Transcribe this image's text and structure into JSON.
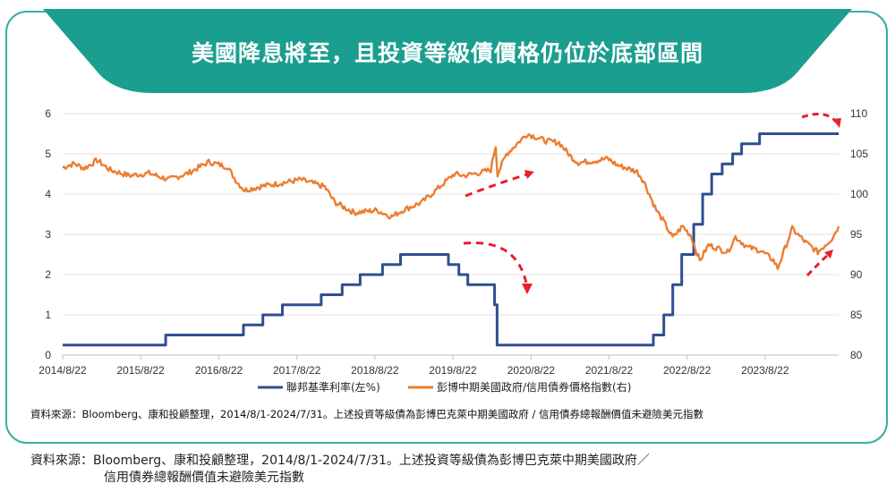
{
  "title": "美國降息將至，且投資等級債價格仍位於底部區間",
  "inner_source": "資料來源：Bloomberg、康和投顧整理，2014/8/1-2024/7/31。上述投資等級債為彭博巴克萊中期美國政府 / 信用債券總報酬價值未避險美元指數",
  "footer": {
    "line1": "資料來源：Bloomberg、康和投顧整理，2014/8/1-2024/7/31。上述投資等級債為彭博巴克萊中期美國政府／",
    "line2": "信用債券總報酬價值未避險美元指數"
  },
  "colors": {
    "accent": "#1a9e8f",
    "rate": "#2f4f8f",
    "index": "#ed7d31",
    "arrow": "#e8202a"
  },
  "chart_data": {
    "type": "line",
    "x_ticks": [
      "2014/8/22",
      "2015/8/22",
      "2016/8/22",
      "2017/8/22",
      "2018/8/22",
      "2019/8/22",
      "2020/8/22",
      "2021/8/22",
      "2022/8/22",
      "2023/8/22"
    ],
    "x_range": [
      "2014/8/22",
      "2024/7/31"
    ],
    "y_left": {
      "ticks": [
        "0",
        "1",
        "2",
        "3",
        "4",
        "5",
        "6"
      ],
      "range": [
        0,
        6
      ]
    },
    "y_right": {
      "ticks": [
        "80",
        "85",
        "90",
        "95",
        "100",
        "105",
        "110"
      ],
      "range": [
        80,
        110
      ]
    },
    "series": [
      {
        "name": "聯邦基準利率(左%)",
        "axis": "left",
        "step": true,
        "points": [
          [
            "2014/8/22",
            0.25
          ],
          [
            "2015/12/17",
            0.5
          ],
          [
            "2016/12/15",
            0.75
          ],
          [
            "2017/3/16",
            1.0
          ],
          [
            "2017/6/15",
            1.25
          ],
          [
            "2017/12/14",
            1.5
          ],
          [
            "2018/3/22",
            1.75
          ],
          [
            "2018/6/14",
            2.0
          ],
          [
            "2018/9/27",
            2.25
          ],
          [
            "2018/12/20",
            2.5
          ],
          [
            "2019/8/1",
            2.25
          ],
          [
            "2019/9/19",
            2.0
          ],
          [
            "2019/10/31",
            1.75
          ],
          [
            "2020/3/4",
            1.25
          ],
          [
            "2020/3/16",
            0.25
          ],
          [
            "2022/3/17",
            0.5
          ],
          [
            "2022/5/5",
            1.0
          ],
          [
            "2022/6/16",
            1.75
          ],
          [
            "2022/7/28",
            2.5
          ],
          [
            "2022/9/22",
            3.25
          ],
          [
            "2022/11/3",
            4.0
          ],
          [
            "2022/12/15",
            4.5
          ],
          [
            "2023/2/2",
            4.75
          ],
          [
            "2023/3/23",
            5.0
          ],
          [
            "2023/5/4",
            5.25
          ],
          [
            "2023/7/27",
            5.5
          ],
          [
            "2024/7/31",
            5.5
          ]
        ]
      },
      {
        "name": "彭博中期美國政府/信用債券價格指數(右)",
        "axis": "right",
        "step": false,
        "points": [
          [
            "2014/8/22",
            103.3
          ],
          [
            "2014/10/15",
            103.8
          ],
          [
            "2014/12/1",
            103.2
          ],
          [
            "2015/1/31",
            104.2
          ],
          [
            "2015/4/1",
            103.0
          ],
          [
            "2015/6/30",
            102.3
          ],
          [
            "2015/9/30",
            102.6
          ],
          [
            "2015/12/31",
            101.8
          ],
          [
            "2016/3/31",
            102.6
          ],
          [
            "2016/7/6",
            104.0
          ],
          [
            "2016/9/30",
            103.4
          ],
          [
            "2016/11/15",
            101.5
          ],
          [
            "2016/12/20",
            100.5
          ],
          [
            "2017/3/15",
            101.0
          ],
          [
            "2017/6/15",
            101.4
          ],
          [
            "2017/9/8",
            101.8
          ],
          [
            "2017/12/31",
            100.9
          ],
          [
            "2018/2/15",
            99.0
          ],
          [
            "2018/5/17",
            97.7
          ],
          [
            "2018/8/31",
            98.0
          ],
          [
            "2018/11/8",
            97.2
          ],
          [
            "2018/12/31",
            98.0
          ],
          [
            "2019/3/31",
            99.0
          ],
          [
            "2019/5/31",
            100.4
          ],
          [
            "2019/8/28",
            102.5
          ],
          [
            "2019/10/15",
            102.3
          ],
          [
            "2019/12/31",
            102.7
          ],
          [
            "2020/2/15",
            103.0
          ],
          [
            "2020/3/9",
            106.0
          ],
          [
            "2020/3/18",
            102.5
          ],
          [
            "2020/4/30",
            105.0
          ],
          [
            "2020/8/4",
            107.5
          ],
          [
            "2020/10/31",
            106.6
          ],
          [
            "2020/12/31",
            106.4
          ],
          [
            "2021/2/26",
            104.6
          ],
          [
            "2021/3/31",
            103.9
          ],
          [
            "2021/6/30",
            104.2
          ],
          [
            "2021/8/15",
            104.4
          ],
          [
            "2021/9/30",
            103.6
          ],
          [
            "2021/12/31",
            102.8
          ],
          [
            "2022/1/31",
            101.6
          ],
          [
            "2022/3/31",
            98.0
          ],
          [
            "2022/4/30",
            96.8
          ],
          [
            "2022/6/15",
            94.6
          ],
          [
            "2022/8/1",
            96.0
          ],
          [
            "2022/9/10",
            94.8
          ],
          [
            "2022/10/20",
            91.7
          ],
          [
            "2022/11/30",
            93.7
          ],
          [
            "2023/2/28",
            92.8
          ],
          [
            "2023/4/5",
            94.7
          ],
          [
            "2023/5/31",
            93.4
          ],
          [
            "2023/7/31",
            93.0
          ],
          [
            "2023/9/30",
            91.8
          ],
          [
            "2023/10/20",
            90.8
          ],
          [
            "2023/12/27",
            95.7
          ],
          [
            "2024/2/28",
            94.0
          ],
          [
            "2024/4/25",
            92.8
          ],
          [
            "2024/6/30",
            94.5
          ],
          [
            "2024/7/31",
            96.0
          ]
        ]
      }
    ]
  }
}
